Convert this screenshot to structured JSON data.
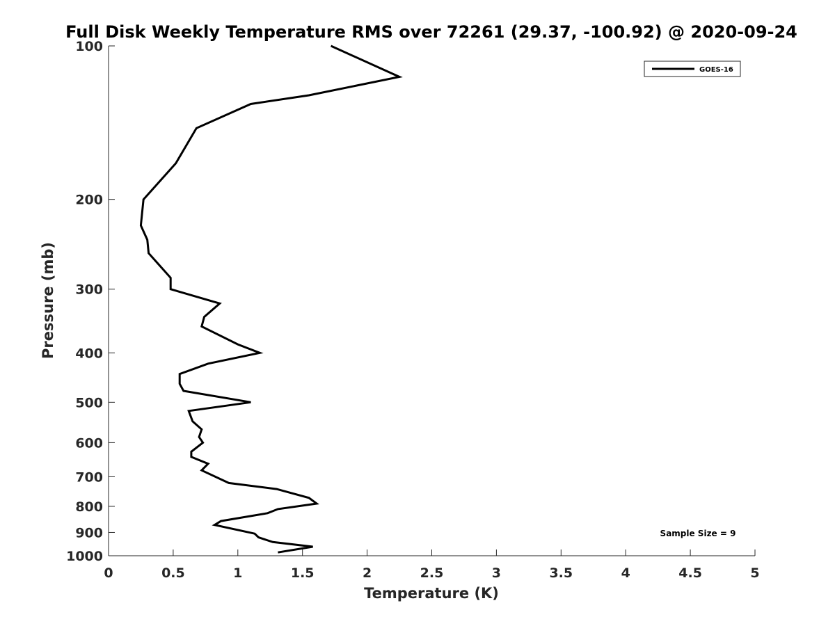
{
  "chart_data": {
    "type": "line",
    "title": "Full Disk Weekly Temperature RMS over 72261 (29.37, -100.92) @ 2020-09-24",
    "xlabel": "Temperature (K)",
    "ylabel": "Pressure (mb)",
    "xlim": [
      0,
      5
    ],
    "ylim": [
      1000,
      100
    ],
    "yscale": "log",
    "y_reversed": true,
    "x_ticks": [
      "0",
      "0.5",
      "1",
      "1.5",
      "2",
      "2.5",
      "3",
      "3.5",
      "4",
      "4.5",
      "5"
    ],
    "y_ticks": [
      "100",
      "200",
      "300",
      "400",
      "500",
      "600",
      "700",
      "800",
      "900",
      "1000"
    ],
    "grid": false,
    "legend_position": "top-right",
    "annotation": "Sample Size = 9",
    "series": [
      {
        "name": "GOES-16",
        "color": "#000000",
        "points": [
          [
            1.72,
            100
          ],
          [
            2.25,
            115
          ],
          [
            1.55,
            125
          ],
          [
            1.1,
            130
          ],
          [
            0.68,
            145
          ],
          [
            0.52,
            170
          ],
          [
            0.27,
            200
          ],
          [
            0.25,
            225
          ],
          [
            0.3,
            240
          ],
          [
            0.31,
            255
          ],
          [
            0.48,
            285
          ],
          [
            0.48,
            300
          ],
          [
            0.86,
            320
          ],
          [
            0.74,
            340
          ],
          [
            0.72,
            355
          ],
          [
            1.0,
            385
          ],
          [
            1.17,
            400
          ],
          [
            0.77,
            420
          ],
          [
            0.55,
            440
          ],
          [
            0.55,
            460
          ],
          [
            0.58,
            475
          ],
          [
            1.1,
            500
          ],
          [
            0.62,
            520
          ],
          [
            0.65,
            545
          ],
          [
            0.72,
            565
          ],
          [
            0.7,
            585
          ],
          [
            0.73,
            600
          ],
          [
            0.64,
            625
          ],
          [
            0.64,
            640
          ],
          [
            0.77,
            660
          ],
          [
            0.72,
            680
          ],
          [
            0.93,
            720
          ],
          [
            1.3,
            740
          ],
          [
            1.55,
            770
          ],
          [
            1.61,
            790
          ],
          [
            1.31,
            810
          ],
          [
            1.23,
            825
          ],
          [
            0.87,
            855
          ],
          [
            0.82,
            870
          ],
          [
            1.13,
            905
          ],
          [
            1.16,
            920
          ],
          [
            1.27,
            940
          ],
          [
            1.58,
            960
          ],
          [
            1.31,
            985
          ]
        ]
      }
    ]
  }
}
